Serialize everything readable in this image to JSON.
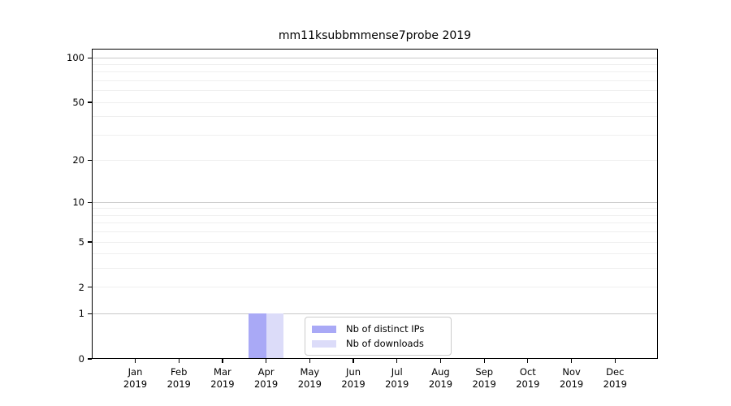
{
  "chart_data": {
    "type": "bar",
    "title": "mm11ksubbmmense7probe 2019",
    "categories": [
      "Jan 2019",
      "Feb 2019",
      "Mar 2019",
      "Apr 2019",
      "May 2019",
      "Jun 2019",
      "Jul 2019",
      "Aug 2019",
      "Sep 2019",
      "Oct 2019",
      "Nov 2019",
      "Dec 2019"
    ],
    "series": [
      {
        "name": "Nb of distinct IPs",
        "color": "#a9a9f6",
        "values": [
          0,
          0,
          0,
          1,
          0,
          0,
          0,
          0,
          0,
          0,
          0,
          0
        ]
      },
      {
        "name": "Nb of downloads",
        "color": "#dcdcf9",
        "values": [
          0,
          0,
          0,
          1,
          0,
          0,
          0,
          0,
          0,
          0,
          0,
          0
        ]
      }
    ],
    "xlabel": "",
    "ylabel": "",
    "yscale": "log1p",
    "ylim": [
      0,
      115
    ],
    "ytick_values": [
      0,
      1,
      2,
      5,
      10,
      20,
      50,
      100
    ],
    "ytick_labels": [
      "0",
      "1",
      "2",
      "5",
      "10",
      "20",
      "50",
      "100"
    ],
    "grid": {
      "minor_values": [
        2,
        3,
        4,
        5,
        6,
        7,
        8,
        9,
        20,
        30,
        40,
        50,
        60,
        70,
        80,
        90
      ],
      "major_values": [
        1,
        10,
        100
      ]
    },
    "legend": {
      "position": "lower center",
      "entries": [
        "Nb of distinct IPs",
        "Nb of downloads"
      ]
    },
    "colors": {
      "bar_distinct_ips": "#a9a9f6",
      "bar_downloads": "#dcdcf9",
      "grid_minor": "#efefef",
      "grid_major": "#c9c9c9",
      "axis": "#000000",
      "text": "#000000",
      "legend_border": "#cccccc",
      "background": "#ffffff"
    }
  }
}
